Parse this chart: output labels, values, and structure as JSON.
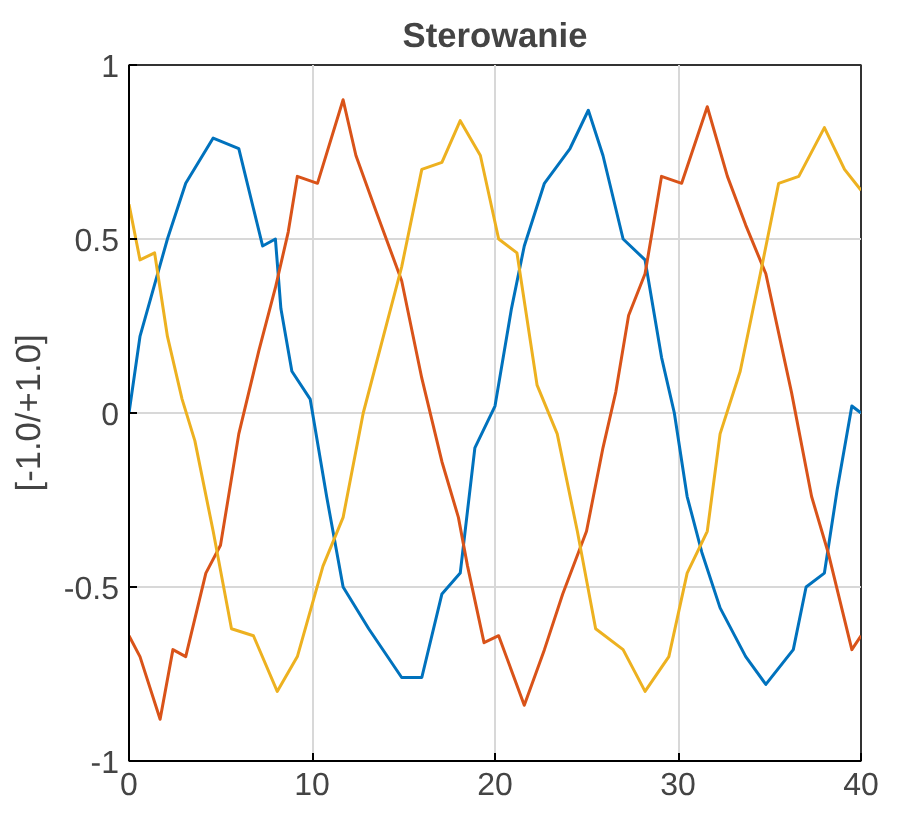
{
  "chart_data": {
    "type": "line",
    "title": "Sterowanie",
    "ylabel": "[-1.0/+1.0]",
    "xlim": [
      0,
      40
    ],
    "ylim": [
      -1,
      1
    ],
    "xticks": [
      0,
      10,
      20,
      30,
      40
    ],
    "yticks": [
      -1,
      -0.5,
      0,
      0.5,
      1
    ],
    "grid": true,
    "line_style": "solid",
    "series": [
      {
        "color": "#0072bd",
        "x": [
          0,
          0.6,
          2.1,
          3.1,
          4.6,
          6,
          7.3,
          8,
          8.3,
          8.9,
          9.9,
          10.8,
          11.7,
          13.1,
          14.9,
          16,
          17.1,
          18.1,
          18.9,
          20,
          20.9,
          21.6,
          22.7,
          24.1,
          25.1,
          25.9,
          27,
          28.2,
          29.1,
          29.8,
          30.5,
          31.3,
          32.3,
          33.7,
          34.8,
          36.3,
          37,
          38,
          38.7,
          39.5,
          40
        ],
        "values": [
          0,
          0.22,
          0.5,
          0.66,
          0.79,
          0.76,
          0.48,
          0.5,
          0.3,
          0.12,
          0.04,
          -0.24,
          -0.5,
          -0.62,
          -0.76,
          -0.76,
          -0.52,
          -0.46,
          -0.1,
          0.02,
          0.3,
          0.48,
          0.66,
          0.76,
          0.87,
          0.74,
          0.5,
          0.44,
          0.16,
          0,
          -0.24,
          -0.4,
          -0.56,
          -0.7,
          -0.78,
          -0.68,
          -0.5,
          -0.46,
          -0.22,
          0.02,
          0
        ]
      },
      {
        "color": "#d95319",
        "x": [
          0,
          0.6,
          1.7,
          2.4,
          3.1,
          4.2,
          5,
          6,
          7.1,
          8,
          8.7,
          9.2,
          10.3,
          11.7,
          12.4,
          13.5,
          14.9,
          16,
          17.1,
          18,
          18.5,
          19.4,
          20.2,
          21.6,
          22.7,
          23.7,
          25,
          25.9,
          26.6,
          27.3,
          28.2,
          29.1,
          30.2,
          31.6,
          32.7,
          33.7,
          34.8,
          36.2,
          37.3,
          38.2,
          39.5,
          40
        ],
        "values": [
          -0.64,
          -0.7,
          -0.88,
          -0.68,
          -0.7,
          -0.46,
          -0.38,
          -0.06,
          0.18,
          0.36,
          0.52,
          0.68,
          0.66,
          0.9,
          0.74,
          0.58,
          0.38,
          0.1,
          -0.14,
          -0.3,
          -0.44,
          -0.66,
          -0.64,
          -0.84,
          -0.68,
          -0.52,
          -0.34,
          -0.1,
          0.06,
          0.28,
          0.4,
          0.68,
          0.66,
          0.88,
          0.68,
          0.54,
          0.4,
          0.06,
          -0.24,
          -0.4,
          -0.68,
          -0.64
        ]
      },
      {
        "color": "#edb120",
        "x": [
          0,
          0.6,
          1.4,
          2.1,
          2.9,
          3.6,
          4.6,
          5.6,
          6.8,
          8.1,
          9.2,
          10.6,
          11.7,
          12.8,
          13.9,
          14.9,
          16,
          17.1,
          18.1,
          19.2,
          20.2,
          21.2,
          22.3,
          23.4,
          24.5,
          25.5,
          27,
          28.2,
          29.5,
          30.5,
          31.6,
          32.3,
          33.4,
          34.5,
          35.5,
          36.6,
          38,
          39.1,
          40
        ],
        "values": [
          0.6,
          0.44,
          0.46,
          0.22,
          0.04,
          -0.08,
          -0.34,
          -0.62,
          -0.64,
          -0.8,
          -0.7,
          -0.44,
          -0.3,
          0,
          0.22,
          0.42,
          0.7,
          0.72,
          0.84,
          0.74,
          0.5,
          0.46,
          0.08,
          -0.06,
          -0.34,
          -0.62,
          -0.68,
          -0.8,
          -0.7,
          -0.46,
          -0.34,
          -0.06,
          0.12,
          0.4,
          0.66,
          0.68,
          0.82,
          0.7,
          0.64
        ]
      }
    ]
  }
}
